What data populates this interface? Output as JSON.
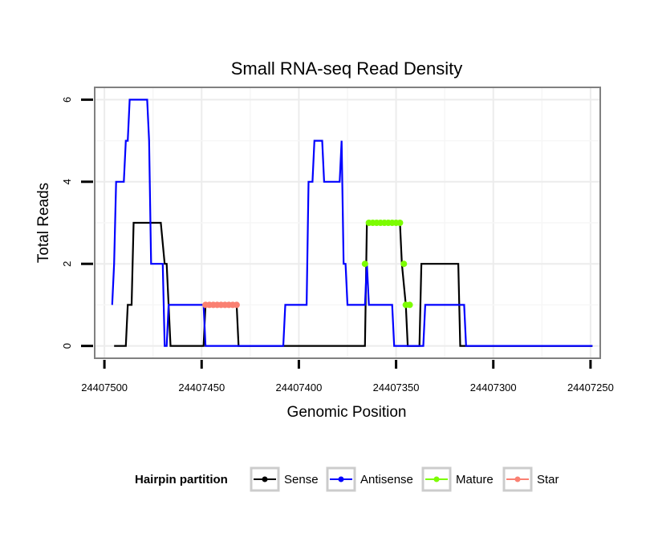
{
  "chart_data": {
    "type": "line",
    "title": "Small RNA-seq Read Density",
    "xlabel": "Genomic Position",
    "ylabel": "Total Reads",
    "x_reversed": true,
    "xlim": [
      24407505,
      24407245
    ],
    "ylim": [
      -0.3,
      6.3
    ],
    "x_ticks": [
      24407500,
      24407450,
      24407400,
      24407350,
      24407300,
      24407250
    ],
    "x_tick_labels": [
      "24407500",
      "24407450",
      "24407400",
      "24407350",
      "24407300",
      "24407250"
    ],
    "y_ticks": [
      0,
      2,
      4,
      6
    ],
    "y_tick_labels": [
      "0",
      "2",
      "4",
      "6"
    ],
    "grid": true,
    "legend": {
      "title": "Hairpin partition",
      "position": "bottom",
      "entries": [
        "Sense",
        "Antisense",
        "Mature",
        "Star"
      ]
    },
    "series": [
      {
        "name": "Sense",
        "color": "#000000",
        "marker": "line",
        "points": [
          [
            24407495,
            0
          ],
          [
            24407489,
            0
          ],
          [
            24407488,
            1
          ],
          [
            24407486,
            1
          ],
          [
            24407485,
            3
          ],
          [
            24407471,
            3
          ],
          [
            24407469,
            2
          ],
          [
            24407468,
            2
          ],
          [
            24407467,
            1
          ],
          [
            24407466,
            0
          ],
          [
            24407449,
            0
          ],
          [
            24407448,
            1
          ],
          [
            24407432,
            1
          ],
          [
            24407431,
            0
          ],
          [
            24407366,
            0
          ],
          [
            24407365,
            3
          ],
          [
            24407348,
            3
          ],
          [
            24407347,
            2
          ],
          [
            24407345,
            1
          ],
          [
            24407344,
            0
          ],
          [
            24407338,
            0
          ],
          [
            24407337,
            2
          ],
          [
            24407318,
            2
          ],
          [
            24407317,
            0
          ],
          [
            24407249,
            0
          ]
        ]
      },
      {
        "name": "Antisense",
        "color": "#0000ff",
        "marker": "line",
        "points": [
          [
            24407496,
            1
          ],
          [
            24407495,
            2
          ],
          [
            24407494,
            4
          ],
          [
            24407490,
            4
          ],
          [
            24407489,
            5
          ],
          [
            24407488,
            5
          ],
          [
            24407487,
            6
          ],
          [
            24407478,
            6
          ],
          [
            24407477,
            5
          ],
          [
            24407476,
            2
          ],
          [
            24407470,
            2
          ],
          [
            24407469,
            0
          ],
          [
            24407468,
            0
          ],
          [
            24407467,
            1
          ],
          [
            24407449,
            1
          ],
          [
            24407448,
            0
          ],
          [
            24407408,
            0
          ],
          [
            24407407,
            1
          ],
          [
            24407396,
            1
          ],
          [
            24407395,
            4
          ],
          [
            24407393,
            4
          ],
          [
            24407392,
            5
          ],
          [
            24407388,
            5
          ],
          [
            24407387,
            4
          ],
          [
            24407379,
            4
          ],
          [
            24407378,
            5
          ],
          [
            24407377,
            2
          ],
          [
            24407376,
            2
          ],
          [
            24407375,
            1
          ],
          [
            24407366,
            1
          ],
          [
            24407365,
            2
          ],
          [
            24407364,
            1
          ],
          [
            24407352,
            1
          ],
          [
            24407351,
            0
          ],
          [
            24407336,
            0
          ],
          [
            24407335,
            1
          ],
          [
            24407315,
            1
          ],
          [
            24407314,
            0
          ],
          [
            24407249,
            0
          ]
        ]
      },
      {
        "name": "Mature",
        "color": "#7cfc00",
        "marker": "points",
        "points": [
          [
            24407366,
            2
          ],
          [
            24407364,
            3
          ],
          [
            24407362,
            3
          ],
          [
            24407360,
            3
          ],
          [
            24407358,
            3
          ],
          [
            24407356,
            3
          ],
          [
            24407354,
            3
          ],
          [
            24407352,
            3
          ],
          [
            24407350,
            3
          ],
          [
            24407348,
            3
          ],
          [
            24407346,
            2
          ],
          [
            24407345,
            1
          ],
          [
            24407343,
            1
          ]
        ]
      },
      {
        "name": "Star",
        "color": "#fa8072",
        "marker": "points",
        "points": [
          [
            24407448,
            1
          ],
          [
            24407446,
            1
          ],
          [
            24407444,
            1
          ],
          [
            24407442,
            1
          ],
          [
            24407440,
            1
          ],
          [
            24407438,
            1
          ],
          [
            24407436,
            1
          ],
          [
            24407434,
            1
          ],
          [
            24407432,
            1
          ]
        ]
      }
    ]
  }
}
